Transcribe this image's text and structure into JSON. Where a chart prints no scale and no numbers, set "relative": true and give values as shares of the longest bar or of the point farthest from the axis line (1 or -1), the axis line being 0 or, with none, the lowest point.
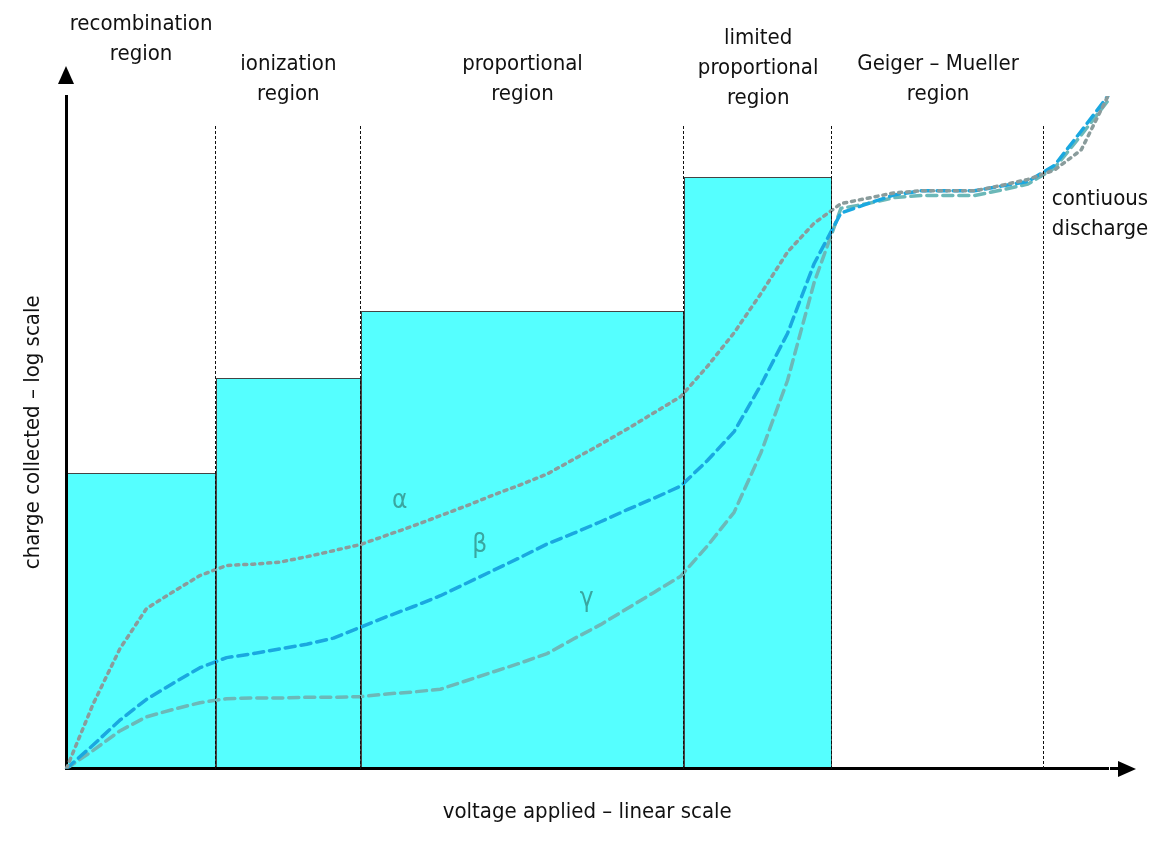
{
  "chart_data": {
    "type": "line",
    "relative": true,
    "xlabel": "voltage applied – linear scale",
    "ylabel": "charge collected – log scale",
    "tick_labels": false,
    "grid": false,
    "legend": false,
    "categories": [
      null,
      null,
      null,
      null,
      null,
      null,
      null,
      null,
      null,
      null,
      null,
      null,
      null,
      null,
      null,
      null,
      null,
      null,
      null,
      null,
      null,
      null,
      null,
      null,
      null,
      null,
      null,
      null,
      null,
      null,
      null,
      null,
      null,
      null,
      null,
      null,
      null,
      null,
      null,
      null
    ],
    "series": [
      {
        "name": "α",
        "color": "#8a9c9c",
        "line_style": "dotted",
        "values": [
          0,
          0.096,
          0.178,
          0.238,
          0.263,
          0.287,
          0.302,
          0.304,
          0.307,
          0.315,
          0.324,
          0.333,
          0.347,
          0.361,
          0.376,
          0.391,
          0.407,
          0.422,
          0.438,
          0.46,
          0.482,
          0.505,
          0.529,
          0.553,
          0.598,
          0.648,
          0.706,
          0.768,
          0.811,
          0.84,
          0.848,
          0.856,
          0.859,
          0.859,
          0.859,
          0.867,
          0.876,
          0.89,
          0.92,
          1
        ]
      },
      {
        "name": "β",
        "color": "#1aa8e0",
        "line_style": "dashed",
        "values": [
          0,
          0.035,
          0.072,
          0.103,
          0.127,
          0.15,
          0.165,
          0.171,
          0.178,
          0.185,
          0.194,
          0.21,
          0.226,
          0.241,
          0.257,
          0.276,
          0.295,
          0.314,
          0.334,
          0.35,
          0.367,
          0.385,
          0.402,
          0.42,
          0.458,
          0.501,
          0.57,
          0.647,
          0.751,
          0.826,
          0.84,
          0.853,
          0.859,
          0.859,
          0.859,
          0.866,
          0.873,
          0.897,
          0.948,
          1
        ]
      },
      {
        "name": "γ",
        "color": "#6cb8b8",
        "line_style": "dashed",
        "values": [
          0,
          0.027,
          0.056,
          0.077,
          0.088,
          0.098,
          0.104,
          0.105,
          0.105,
          0.106,
          0.106,
          0.107,
          0.111,
          0.114,
          0.118,
          0.131,
          0.144,
          0.157,
          0.171,
          0.193,
          0.214,
          0.238,
          0.262,
          0.286,
          0.331,
          0.381,
          0.469,
          0.577,
          0.723,
          0.833,
          0.84,
          0.849,
          0.852,
          0.852,
          0.852,
          0.86,
          0.869,
          0.893,
          0.942,
          0.993
        ]
      }
    ],
    "annotations": [
      "recombination region",
      "ionization region",
      "proportional region",
      "limited proportional region",
      "Geiger – Mueller region",
      "contiuous discharge"
    ]
  }
}
